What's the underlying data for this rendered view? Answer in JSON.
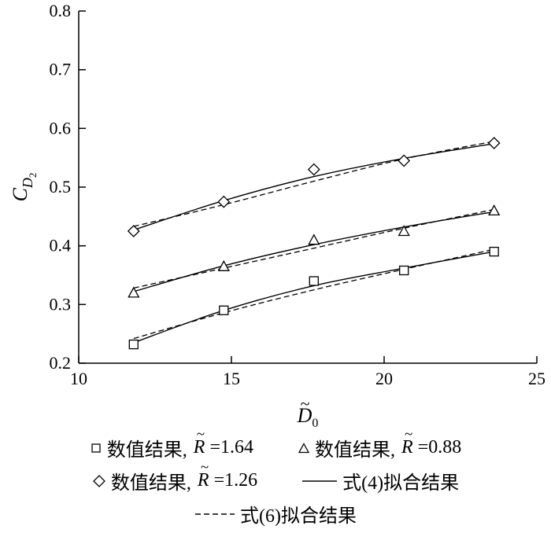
{
  "chart_data": {
    "type": "scatter",
    "title": "",
    "xlabel": "D̃0",
    "ylabel": "C_D2",
    "xlabel_parts": {
      "base": "D",
      "tilde": "~",
      "sub": "0"
    },
    "ylabel_parts": {
      "base": "C",
      "sub": "D",
      "subsub": "2"
    },
    "xlim": [
      10,
      25
    ],
    "ylim": [
      0.2,
      0.8
    ],
    "grid": false,
    "legend_position": "below",
    "x_ticks": [
      {
        "v": 10,
        "label": "10"
      },
      {
        "v": 15,
        "label": "15"
      },
      {
        "v": 20,
        "label": "20"
      },
      {
        "v": 25,
        "label": "25"
      }
    ],
    "y_ticks": [
      {
        "v": 0.2,
        "label": "0.2"
      },
      {
        "v": 0.3,
        "label": "0.3"
      },
      {
        "v": 0.4,
        "label": "0.4"
      },
      {
        "v": 0.5,
        "label": "0.5"
      },
      {
        "v": 0.6,
        "label": "0.6"
      },
      {
        "v": 0.7,
        "label": "0.7"
      },
      {
        "v": 0.8,
        "label": "0.8"
      }
    ],
    "x": [
      11.8,
      14.75,
      17.7,
      20.65,
      23.6
    ],
    "series": [
      {
        "name": "数值结果, R̃=1.64",
        "marker": "square",
        "R": 1.64,
        "y": [
          0.232,
          0.29,
          0.34,
          0.358,
          0.39
        ],
        "fit4_y": [
          0.235,
          0.29,
          0.332,
          0.362,
          0.39
        ],
        "fit6_y": [
          0.242,
          0.286,
          0.325,
          0.36,
          0.394
        ]
      },
      {
        "name": "数值结果, R̃=0.88",
        "marker": "triangle",
        "R": 0.88,
        "y": [
          0.32,
          0.365,
          0.41,
          0.425,
          0.46
        ],
        "fit4_y": [
          0.322,
          0.366,
          0.402,
          0.432,
          0.458
        ],
        "fit6_y": [
          0.328,
          0.362,
          0.396,
          0.43,
          0.462
        ]
      },
      {
        "name": "数值结果, R̃=1.26",
        "marker": "diamond",
        "R": 1.26,
        "y": [
          0.425,
          0.475,
          0.53,
          0.545,
          0.575
        ],
        "fit4_y": [
          0.427,
          0.477,
          0.518,
          0.549,
          0.574
        ],
        "fit6_y": [
          0.433,
          0.47,
          0.51,
          0.548,
          0.578
        ]
      }
    ],
    "fit_lines": [
      {
        "style": "solid",
        "label": "式(4)拟合结果"
      },
      {
        "style": "dashed",
        "label": "式(6)拟合结果"
      }
    ],
    "colors": {
      "line": "#000000",
      "marker_fill": "#ffffff",
      "background": "#ffffff"
    }
  },
  "legend": {
    "rows": [
      [
        {
          "marker": "square",
          "prefix": "数值结果, ",
          "var_base": "R",
          "tilde": "~",
          "eq_value": "=1.64"
        },
        {
          "marker": "triangle",
          "prefix": "数值结果, ",
          "var_base": "R",
          "tilde": "~",
          "eq_value": "=0.88"
        }
      ],
      [
        {
          "marker": "diamond",
          "prefix": "数值结果, ",
          "var_base": "R",
          "tilde": "~",
          "eq_value": "=1.26"
        },
        {
          "marker": "solid-line",
          "prefix": "式(4)拟合结果",
          "var_base": "",
          "tilde": "",
          "eq_value": ""
        }
      ],
      [
        {
          "marker": "dashed-line",
          "prefix": "式(6)拟合结果",
          "var_base": "",
          "tilde": "",
          "eq_value": ""
        }
      ]
    ]
  }
}
